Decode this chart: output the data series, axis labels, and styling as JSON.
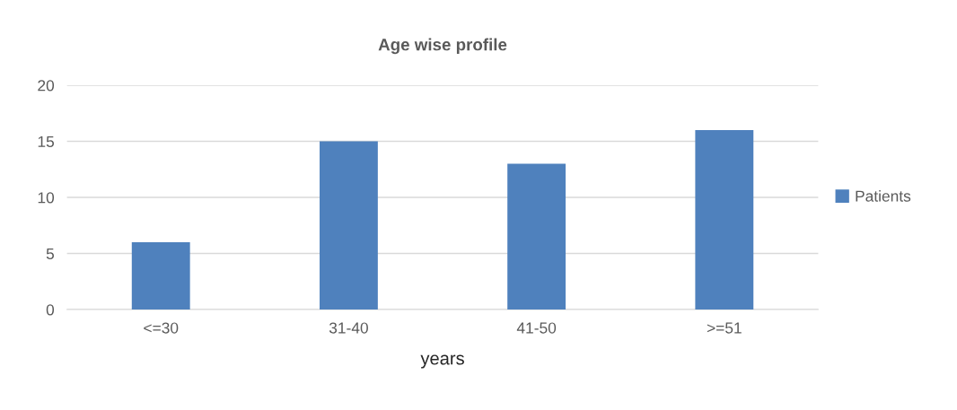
{
  "chart_data": {
    "type": "bar",
    "title": "Age wise profile",
    "xlabel": "years",
    "categories": [
      "<=30",
      "31-40",
      "41-50",
      ">=51"
    ],
    "series": [
      {
        "name": "Patients",
        "color": "#4f81bd",
        "values": [
          6,
          15,
          13,
          16
        ]
      }
    ],
    "ylim": [
      0,
      20
    ],
    "yticks": [
      0,
      5,
      10,
      15,
      20
    ],
    "grid": "y",
    "legend": "right"
  }
}
